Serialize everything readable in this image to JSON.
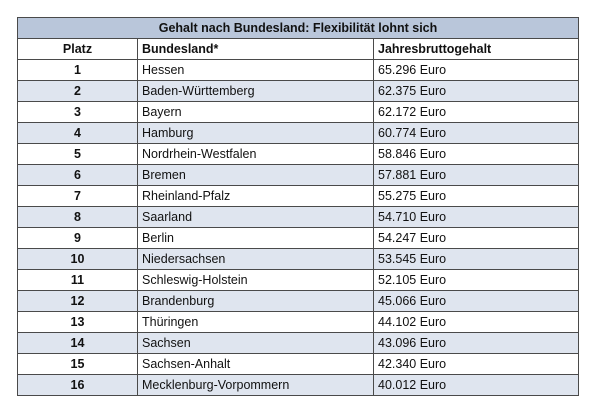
{
  "table": {
    "title": "Gehalt nach Bundesland: Flexibilität lohnt sich",
    "headers": {
      "rank": "Platz",
      "state": "Bundesland*",
      "salary": "Jahresbruttogehalt"
    },
    "rows": [
      {
        "rank": "1",
        "state": "Hessen",
        "salary": "65.296 Euro"
      },
      {
        "rank": "2",
        "state": "Baden-Württemberg",
        "salary": "62.375 Euro"
      },
      {
        "rank": "3",
        "state": "Bayern",
        "salary": "62.172 Euro"
      },
      {
        "rank": "4",
        "state": "Hamburg",
        "salary": "60.774 Euro"
      },
      {
        "rank": "5",
        "state": "Nordrhein-Westfalen",
        "salary": "58.846 Euro"
      },
      {
        "rank": "6",
        "state": "Bremen",
        "salary": "57.881 Euro"
      },
      {
        "rank": "7",
        "state": "Rheinland-Pfalz",
        "salary": "55.275 Euro"
      },
      {
        "rank": "8",
        "state": "Saarland",
        "salary": "54.710 Euro"
      },
      {
        "rank": "9",
        "state": "Berlin",
        "salary": "54.247 Euro"
      },
      {
        "rank": "10",
        "state": "Niedersachsen",
        "salary": "53.545 Euro"
      },
      {
        "rank": "11",
        "state": "Schleswig-Holstein",
        "salary": "52.105 Euro"
      },
      {
        "rank": "12",
        "state": "Brandenburg",
        "salary": "45.066 Euro"
      },
      {
        "rank": "13",
        "state": "Thüringen",
        "salary": "44.102 Euro"
      },
      {
        "rank": "14",
        "state": "Sachsen",
        "salary": "43.096 Euro"
      },
      {
        "rank": "15",
        "state": "Sachsen-Anhalt",
        "salary": "42.340 Euro"
      },
      {
        "rank": "16",
        "state": "Mecklenburg-Vorpommern",
        "salary": "40.012 Euro"
      }
    ]
  },
  "colors": {
    "title_background": "#b9c6da",
    "shaded_row": "#dfe5ef",
    "border": "#4a4a4a"
  }
}
